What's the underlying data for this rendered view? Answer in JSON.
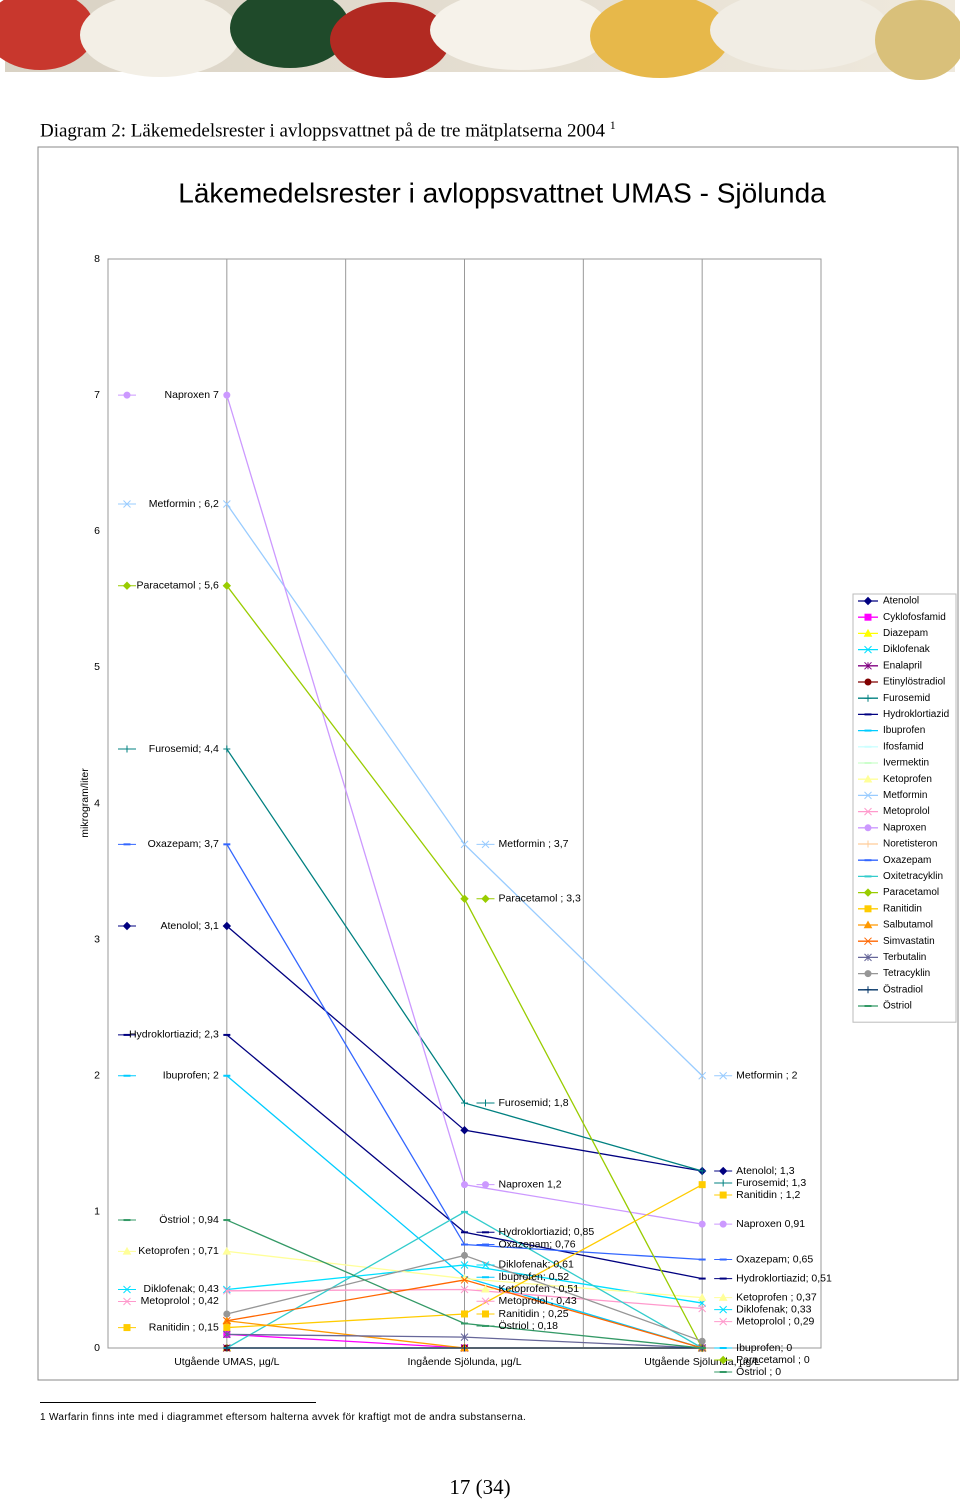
{
  "heading": {
    "text": "Diagram 2: Läkemedelsrester i avloppsvattnet på de tre mätplatserna 2004",
    "footnote_mark": "1"
  },
  "chart_data": {
    "type": "line",
    "title": "Läkemedelsrester i avloppsvattnet UMAS - Sjölunda",
    "y_label": "mikrogram/liter",
    "categories": [
      "Utgående UMAS, µg/L",
      "Ingående Sjölunda, µg/L",
      "Utgående Sjölunda, µg/L"
    ],
    "ylim": [
      0,
      8
    ],
    "yticks": [
      0,
      1,
      2,
      3,
      4,
      5,
      6,
      7,
      8
    ],
    "legend": "right",
    "series": [
      {
        "name": "Atenolol",
        "color": "#000080",
        "marker": "diamond",
        "values": [
          3.1,
          1.6,
          1.3
        ],
        "value_labels": [
          "Atenolol; 3,1",
          null,
          "Atenolol; 1,3"
        ]
      },
      {
        "name": "Cyklofosfamid",
        "color": "#ff00ff",
        "marker": "square",
        "values": [
          0.1,
          0,
          0
        ]
      },
      {
        "name": "Diazepam",
        "color": "#ffff00",
        "marker": "triangle",
        "values": [
          0,
          0,
          0
        ]
      },
      {
        "name": "Diklofenak",
        "color": "#00e0ff",
        "marker": "x",
        "values": [
          0.43,
          0.61,
          0.33
        ],
        "value_labels": [
          "Diklofenak; 0,43",
          "Diklofenak; 0,61",
          "Diklofenak; 0,33"
        ]
      },
      {
        "name": "Enalapril",
        "color": "#800080",
        "marker": "asterisk",
        "values": [
          0,
          0,
          0
        ]
      },
      {
        "name": "Etinylöstradiol",
        "color": "#800000",
        "marker": "circle",
        "values": [
          0,
          0,
          0
        ]
      },
      {
        "name": "Furosemid",
        "color": "#008080",
        "marker": "plus",
        "values": [
          4.4,
          1.8,
          1.3
        ],
        "value_labels": [
          "Furosemid; 4,4",
          "Furosemid; 1,8",
          "Furosemid; 1,3"
        ]
      },
      {
        "name": "Hydroklortiazid",
        "color": "#000080",
        "marker": "dash",
        "values": [
          2.3,
          0.85,
          0.51
        ],
        "value_labels": [
          "Hydroklortiazid; 2,3",
          "Hydroklortiazid; 0,85",
          "Hydroklortiazid; 0,51"
        ]
      },
      {
        "name": "Ibuprofen",
        "color": "#00ccff",
        "marker": "dash",
        "values": [
          2,
          0.52,
          0
        ],
        "value_labels": [
          "Ibuprofen; 2",
          "Ibuprofen; 0,52",
          "Ibuprofen; 0"
        ]
      },
      {
        "name": "Ifosfamid",
        "color": "#ccffff",
        "marker": "dash",
        "values": [
          0,
          0,
          0
        ]
      },
      {
        "name": "Ivermektin",
        "color": "#ccffcc",
        "marker": "dash",
        "values": [
          0,
          0,
          0
        ]
      },
      {
        "name": "Ketoprofen",
        "color": "#ffff99",
        "marker": "triangle",
        "values": [
          0.71,
          0.51,
          0.37
        ],
        "value_labels": [
          "Ketoprofen ; 0,71",
          "Ketoprofen ; 0,51",
          "Ketoprofen ; 0,37"
        ]
      },
      {
        "name": "Metformin",
        "color": "#99ccff",
        "marker": "x",
        "values": [
          6.2,
          3.7,
          2
        ],
        "value_labels": [
          "Metformin ; 6,2",
          "Metformin ; 3,7",
          "Metformin ; 2"
        ]
      },
      {
        "name": "Metoprolol",
        "color": "#ff99cc",
        "marker": "x",
        "values": [
          0.42,
          0.43,
          0.29
        ],
        "value_labels": [
          "Metoprolol ; 0,42",
          "Metoprolol ; 0,43",
          "Metoprolol ; 0,29"
        ]
      },
      {
        "name": "Naproxen",
        "color": "#cc99ff",
        "marker": "circle",
        "values": [
          7,
          1.2,
          0.91
        ],
        "value_labels": [
          "Naproxen 7",
          "Naproxen 1,2",
          "Naproxen 0,91"
        ]
      },
      {
        "name": "Noretisteron",
        "color": "#ffcc99",
        "marker": "plus",
        "values": [
          0,
          0,
          0
        ]
      },
      {
        "name": "Oxazepam",
        "color": "#3366ff",
        "marker": "dash",
        "values": [
          3.7,
          0.76,
          0.65
        ],
        "value_labels": [
          "Oxazepam; 3,7",
          "Oxazepam; 0,76",
          "Oxazepam; 0,65"
        ]
      },
      {
        "name": "Oxitetracyklin",
        "color": "#33cccc",
        "marker": "dash",
        "values": [
          0,
          1,
          0
        ]
      },
      {
        "name": "Paracetamol",
        "color": "#99cc00",
        "marker": "diamond",
        "values": [
          5.6,
          3.3,
          0
        ],
        "value_labels": [
          "Paracetamol ; 5,6",
          "Paracetamol ; 3,3",
          "Paracetamol ; 0"
        ]
      },
      {
        "name": "Ranitidin",
        "color": "#ffcc00",
        "marker": "square",
        "values": [
          0.15,
          0.25,
          1.2
        ],
        "value_labels": [
          "Ranitidin ; 0,15",
          "Ranitidin ; 0,25",
          "Ranitidin ; 1,2"
        ]
      },
      {
        "name": "Salbutamol",
        "color": "#ff9900",
        "marker": "triangle",
        "values": [
          0.2,
          0,
          0
        ]
      },
      {
        "name": "Simvastatin",
        "color": "#ff6600",
        "marker": "x",
        "values": [
          0.2,
          0.5,
          0
        ]
      },
      {
        "name": "Terbutalin",
        "color": "#666699",
        "marker": "asterisk",
        "values": [
          0.1,
          0.08,
          0
        ]
      },
      {
        "name": "Tetracyklin",
        "color": "#969696",
        "marker": "circle",
        "values": [
          0.25,
          0.68,
          0.05
        ]
      },
      {
        "name": "Östradiol",
        "color": "#003366",
        "marker": "plus",
        "values": [
          0,
          0,
          0
        ]
      },
      {
        "name": "Östriol",
        "color": "#339966",
        "marker": "dash",
        "values": [
          0.94,
          0.18,
          0
        ],
        "value_labels": [
          "Östriol ; 0,94",
          "Östriol ; 0,18",
          "Östriol ; 0"
        ]
      }
    ]
  },
  "footnote": {
    "mark": "1",
    "text": "Warfarin finns inte med i diagrammet eftersom halterna avvek för kraftigt mot de andra substanserna."
  },
  "page_number": "17 (34)"
}
